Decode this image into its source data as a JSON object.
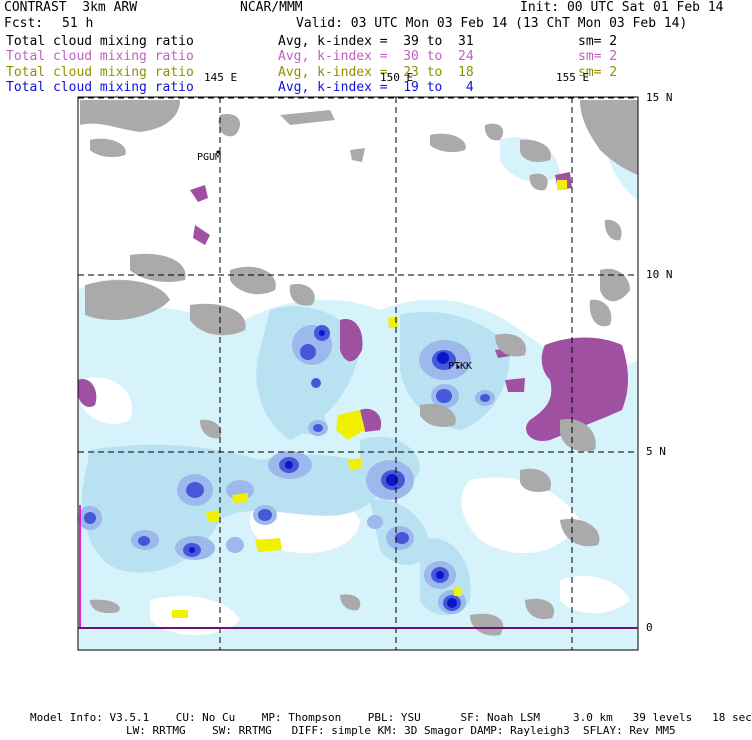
{
  "header": {
    "model": "CONTRAST  3km ARW",
    "org": "NCAR/MMM",
    "init": "Init: 00 UTC Sat 01 Feb 14",
    "fcst_label": "Fcst:",
    "fcst_hours": "51 h",
    "valid": "Valid: 03 UTC Mon 03 Feb 14 (13 ChT Mon 03 Feb 14)"
  },
  "legend": [
    {
      "name": "Total cloud mixing ratio",
      "range": "Avg, k-index =  39 to  31",
      "sm": "sm= 2",
      "color": "#000000"
    },
    {
      "name": "Total cloud mixing ratio",
      "range": "Avg, k-index =  30 to  24",
      "sm": "sm= 2",
      "color": "#c060c0"
    },
    {
      "name": "Total cloud mixing ratio",
      "range": "Avg, k-index =  23 to  18",
      "sm": "sm= 2",
      "color": "#909000"
    },
    {
      "name": "Total cloud mixing ratio",
      "range": "Avg, k-index =  19 to   4",
      "sm": "",
      "color": "#1010e0"
    }
  ],
  "map": {
    "lon_labels": [
      "145 E",
      "150 E",
      "155 E"
    ],
    "lat_labels": [
      "15 N",
      "10 N",
      "5 N",
      "0"
    ],
    "stations": [
      "PGUM",
      "PTKK"
    ]
  },
  "footer": {
    "line1": "Model Info: V3.5.1    CU: No Cu    MP: Thompson    PBL: YSU      SF: Noah LSM     3.0 km   39 levels   18 sec",
    "line2": "LW: RRTMG    SW: RRTMG   DIFF: simple KM: 3D Smagor DAMP: Rayleigh3  SFLAY: Rev MM5"
  },
  "colors": {
    "grey_cloud": "#aaaaaa",
    "purple_cloud": "#a050a0",
    "yellow_cloud": "#f0f000",
    "light_cyan": "#d6f2fa",
    "pale_blue": "#b8e2f2",
    "mid_blue": "#9cb8ec",
    "blue": "#4458d8",
    "deep_blue": "#0a16c8",
    "boundary": "#e020e0"
  }
}
